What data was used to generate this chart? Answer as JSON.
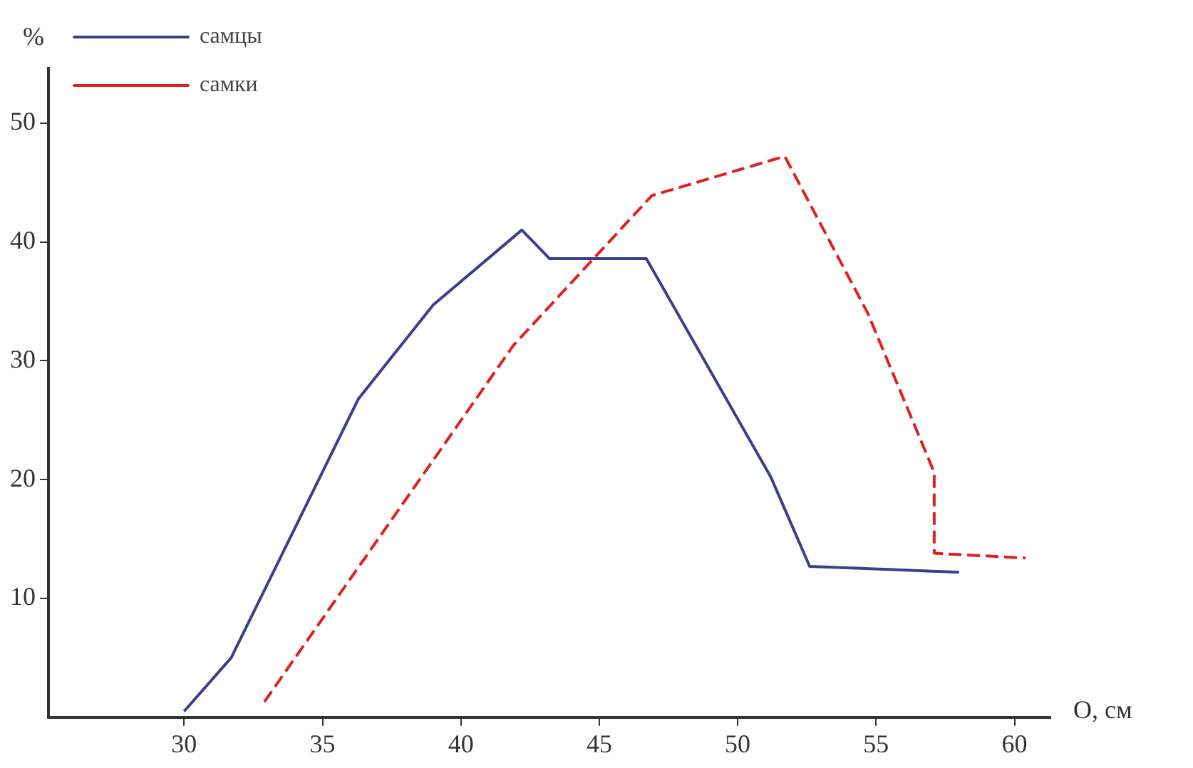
{
  "chart_data": {
    "type": "line",
    "xlabel": "O, см",
    "ylabel": "%",
    "xlim": [
      25.1,
      61.3
    ],
    "xticks": [
      30,
      35,
      40,
      45,
      50,
      55,
      60
    ],
    "ylim": [
      0,
      54.6
    ],
    "yticks": [
      10,
      20,
      30,
      40,
      50
    ],
    "grid": false,
    "legend": "top left",
    "marker": "none",
    "series": [
      {
        "name": "самцы",
        "color": "#3b3f8c",
        "line_style": "solid",
        "x": [
          30,
          31.7,
          36.3,
          39.0,
          42.2,
          43.2,
          46.7,
          51.2,
          52.6,
          58.0
        ],
        "values": [
          0.5,
          5,
          26.8,
          34.7,
          41.0,
          38.6,
          38.6,
          20.2,
          12.7,
          12.2
        ]
      },
      {
        "name": "самки",
        "color": "#e02020",
        "line_style": "dashed",
        "x": [
          32.9,
          41.9,
          46.9,
          51.7,
          54.7,
          57.1,
          57.1,
          60.4
        ],
        "values": [
          1.3,
          31.3,
          43.9,
          47.2,
          34.0,
          20.6,
          13.8,
          13.4
        ]
      }
    ]
  }
}
